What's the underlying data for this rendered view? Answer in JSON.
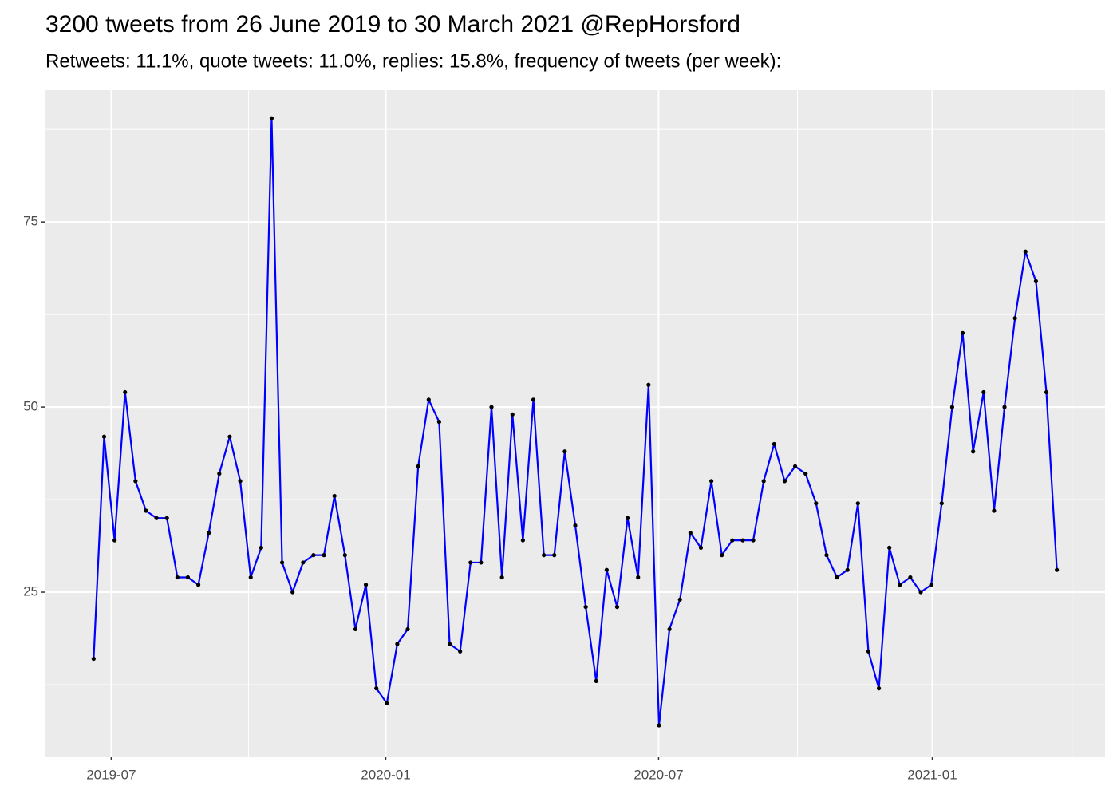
{
  "chart_data": {
    "type": "line",
    "title": "3200 tweets from 26 June 2019 to 30 March 2021 @RepHorsford",
    "subtitle": "Retweets: 11.1%, quote tweets: 11.0%, replies: 15.8%, frequency of tweets (per week):",
    "values": [
      16,
      46,
      32,
      52,
      40,
      36,
      35,
      35,
      27,
      27,
      26,
      33,
      41,
      46,
      40,
      27,
      31,
      89,
      29,
      25,
      29,
      30,
      30,
      38,
      30,
      20,
      26,
      12,
      10,
      18,
      20,
      42,
      51,
      48,
      18,
      17,
      29,
      29,
      50,
      27,
      49,
      32,
      51,
      30,
      30,
      44,
      34,
      23,
      13,
      28,
      23,
      35,
      27,
      53,
      7,
      20,
      24,
      33,
      31,
      40,
      30,
      32,
      32,
      32,
      40,
      45,
      40,
      42,
      41,
      37,
      30,
      27,
      28,
      37,
      17,
      12,
      31,
      26,
      27,
      25,
      26,
      37,
      50,
      60,
      44,
      52,
      36,
      50,
      62,
      71,
      67,
      52,
      28
    ],
    "color": "#0000ff",
    "marker_color": "#000000",
    "xlim": [
      -4.6,
      96.6
    ],
    "xticks": [
      {
        "value": 1.68,
        "label": "2019-07"
      },
      {
        "value": 27.9,
        "label": "2020-01"
      },
      {
        "value": 53.96,
        "label": "2020-07"
      },
      {
        "value": 80.1,
        "label": "2021-01"
      }
    ],
    "ylim": [
      2.8,
      92.8
    ],
    "yticks": [
      25,
      50,
      75
    ],
    "grid": true
  }
}
